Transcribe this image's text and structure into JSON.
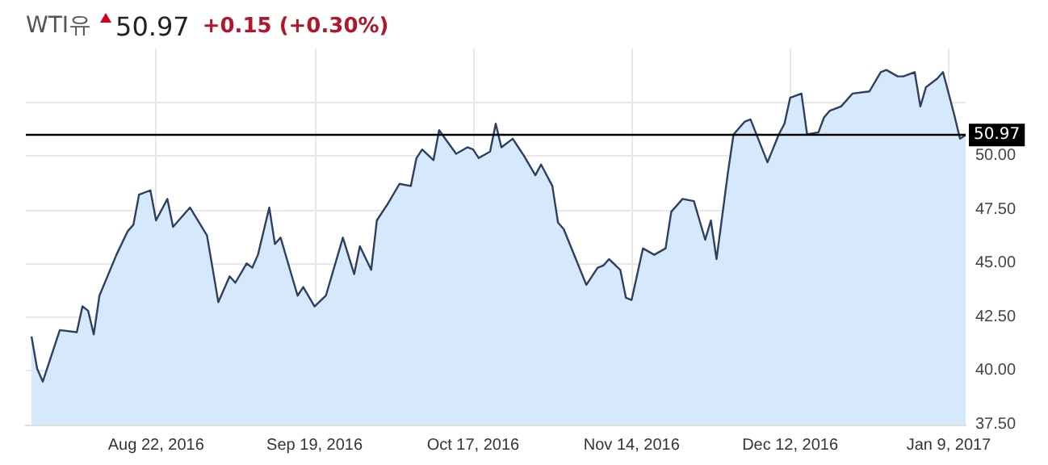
{
  "chart_data": {
    "type": "area",
    "title": "WTI유",
    "subtitle": "50.97",
    "annotations": [
      "+0.15 (+0.30%)"
    ],
    "x": [
      "2016-07-31",
      "2016-08-01",
      "2016-08-02",
      "2016-08-05",
      "2016-08-08",
      "2016-08-09",
      "2016-08-10",
      "2016-08-11",
      "2016-08-12",
      "2016-08-15",
      "2016-08-17",
      "2016-08-18",
      "2016-08-19",
      "2016-08-21",
      "2016-08-22",
      "2016-08-24",
      "2016-08-25",
      "2016-08-28",
      "2016-08-31",
      "2016-09-02",
      "2016-09-04",
      "2016-09-05",
      "2016-09-07",
      "2016-09-08",
      "2016-09-09",
      "2016-09-11",
      "2016-09-12",
      "2016-09-13",
      "2016-09-16",
      "2016-09-17",
      "2016-09-19",
      "2016-09-21",
      "2016-09-23",
      "2016-09-24",
      "2016-09-26",
      "2016-09-27",
      "2016-09-29",
      "2016-09-30",
      "2016-10-02",
      "2016-10-04",
      "2016-10-06",
      "2016-10-07",
      "2016-10-08",
      "2016-10-10",
      "2016-10-11",
      "2016-10-14",
      "2016-10-16",
      "2016-10-17",
      "2016-10-18",
      "2016-10-20",
      "2016-10-21",
      "2016-10-22",
      "2016-10-24",
      "2016-10-25",
      "2016-10-26",
      "2016-10-28",
      "2016-10-29",
      "2016-10-31",
      "2016-11-01",
      "2016-11-02",
      "2016-11-04",
      "2016-11-06",
      "2016-11-08",
      "2016-11-09",
      "2016-11-10",
      "2016-11-12",
      "2016-11-13",
      "2016-11-14",
      "2016-11-16",
      "2016-11-18",
      "2016-11-20",
      "2016-11-21",
      "2016-11-23",
      "2016-11-25",
      "2016-11-27",
      "2016-11-28",
      "2016-11-29",
      "2016-12-01",
      "2016-12-02",
      "2016-12-04",
      "2016-12-05",
      "2016-12-08",
      "2016-12-10",
      "2016-12-11",
      "2016-12-12",
      "2016-12-14",
      "2016-12-15",
      "2016-12-17",
      "2016-12-18",
      "2016-12-19",
      "2016-12-21",
      "2016-12-23",
      "2016-12-26",
      "2016-12-28",
      "2016-12-29",
      "2016-12-31",
      "2017-01-01",
      "2017-01-03",
      "2017-01-04",
      "2017-01-05",
      "2017-01-07",
      "2017-01-08",
      "2017-01-10",
      "2017-01-11",
      "2017-01-12"
    ],
    "series": [
      {
        "color": "#2f3f5f",
        "values": [
          41.6,
          40.1,
          39.5,
          41.9,
          41.8,
          43.0,
          42.8,
          41.7,
          43.5,
          45.4,
          46.5,
          46.8,
          48.2,
          48.4,
          47.0,
          48.0,
          46.7,
          47.6,
          46.3,
          43.2,
          44.4,
          44.1,
          45.0,
          44.8,
          45.4,
          47.6,
          45.9,
          46.2,
          43.5,
          43.9,
          43.0,
          43.5,
          45.3,
          46.2,
          44.5,
          45.8,
          44.7,
          47.0,
          47.8,
          48.7,
          48.6,
          49.9,
          50.3,
          49.8,
          51.2,
          50.1,
          50.4,
          50.3,
          49.9,
          50.2,
          51.5,
          50.4,
          50.8,
          50.4,
          50.0,
          49.1,
          49.6,
          48.6,
          46.9,
          46.6,
          45.3,
          44.0,
          44.8,
          44.9,
          45.2,
          44.7,
          43.4,
          43.3,
          45.7,
          45.4,
          45.7,
          47.4,
          48.0,
          47.9,
          46.1,
          47.0,
          45.2,
          49.2,
          51.0,
          51.6,
          51.7,
          49.7,
          51.0,
          51.5,
          52.7,
          52.9,
          51.0,
          51.1,
          51.8,
          52.1,
          52.3,
          52.9,
          53.0,
          53.9,
          54.0,
          53.7,
          53.7,
          53.9,
          52.3,
          53.2,
          53.6,
          53.9,
          51.9,
          50.8,
          50.97
        ]
      }
    ],
    "xlim": [
      "2016-07-30",
      "2017-01-12"
    ],
    "xticks": [
      {
        "value": "2016-08-22",
        "label": "Aug 22, 2016"
      },
      {
        "value": "2016-09-19",
        "label": "Sep 19, 2016"
      },
      {
        "value": "2016-10-17",
        "label": "Oct 17, 2016"
      },
      {
        "value": "2016-11-14",
        "label": "Nov 14, 2016"
      },
      {
        "value": "2016-12-12",
        "label": "Dec 12, 2016"
      },
      {
        "value": "2017-01-09",
        "label": "Jan 9, 2017"
      }
    ],
    "ylim": [
      37.5,
      55
    ],
    "yticks": [
      {
        "value": 37.5,
        "label": "37.50"
      },
      {
        "value": 40,
        "label": "40.00"
      },
      {
        "value": 42.5,
        "label": "42.50"
      },
      {
        "value": 45,
        "label": "45.00"
      },
      {
        "value": 47.5,
        "label": "47.50"
      },
      {
        "value": 50,
        "label": "50.00"
      },
      {
        "value": 52.5,
        "label": null
      }
    ],
    "ref_lines": [
      {
        "axis": "y",
        "value": 50.97,
        "label": "50.97",
        "color": "#000000"
      }
    ],
    "grid": true,
    "marker": "none",
    "line_style": "solid"
  }
}
